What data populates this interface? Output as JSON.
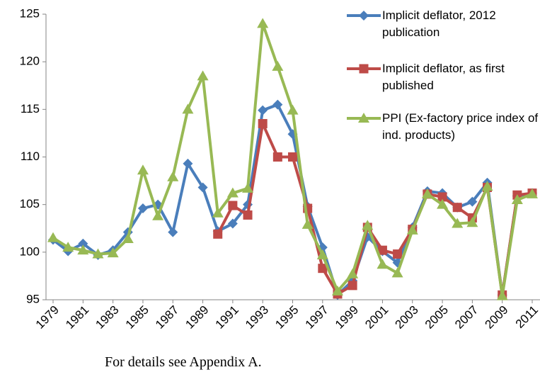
{
  "chart_data": {
    "type": "line",
    "note": "For details see Appendix A.",
    "x": [
      1979,
      1980,
      1981,
      1982,
      1983,
      1984,
      1985,
      1986,
      1987,
      1988,
      1989,
      1990,
      1991,
      1992,
      1993,
      1994,
      1995,
      1996,
      1997,
      1998,
      1999,
      2000,
      2001,
      2002,
      2003,
      2004,
      2005,
      2006,
      2007,
      2008,
      2009,
      2010,
      2011
    ],
    "xlim": [
      1979,
      2011
    ],
    "xticks": [
      1979,
      1981,
      1983,
      1985,
      1987,
      1989,
      1991,
      1993,
      1995,
      1997,
      1999,
      2001,
      2003,
      2005,
      2007,
      2009,
      2011
    ],
    "ylim": [
      95,
      125
    ],
    "yticks": [
      95,
      100,
      105,
      110,
      115,
      120,
      125
    ],
    "legend": "upper right",
    "series": [
      {
        "name": "Implicit deflator, 2012 publication",
        "color": "#4a7ebb",
        "marker": "diamond",
        "values": [
          101.3,
          100.1,
          100.9,
          99.7,
          100.2,
          102.1,
          104.6,
          105.0,
          102.1,
          109.3,
          106.8,
          102.2,
          103.0,
          105.0,
          114.9,
          115.5,
          112.4,
          104.8,
          100.5,
          95.5,
          97.0,
          101.6,
          100.1,
          98.9,
          102.6,
          106.4,
          106.2,
          104.7,
          105.3,
          107.3,
          95.5,
          105.9,
          106.2
        ]
      },
      {
        "name": "Implicit deflator, as first published",
        "color": "#be4b48",
        "marker": "square",
        "values": [
          null,
          null,
          null,
          null,
          null,
          null,
          null,
          null,
          null,
          null,
          null,
          101.9,
          104.9,
          103.9,
          113.5,
          110.0,
          110.0,
          104.6,
          98.3,
          95.6,
          96.5,
          102.6,
          100.2,
          99.8,
          102.4,
          106.1,
          105.8,
          104.7,
          103.6,
          106.8,
          95.5,
          106.0,
          106.2
        ]
      },
      {
        "name": "PPI (Ex-factory price index of ind. products)",
        "color": "#98b954",
        "marker": "triangle",
        "values": [
          101.5,
          100.5,
          100.2,
          99.8,
          99.9,
          101.4,
          108.6,
          103.8,
          107.9,
          115.0,
          118.5,
          104.1,
          106.2,
          106.7,
          124.0,
          119.5,
          114.9,
          102.9,
          99.7,
          95.9,
          97.7,
          102.8,
          98.7,
          97.8,
          102.3,
          106.1,
          105.0,
          103.0,
          103.1,
          106.9,
          95.4,
          105.5,
          106.1
        ]
      }
    ]
  }
}
